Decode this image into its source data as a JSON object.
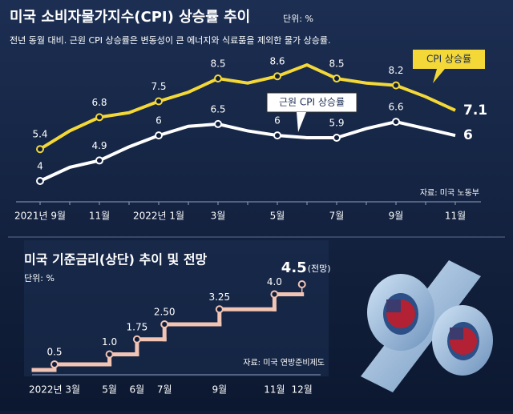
{
  "chart_data": [
    {
      "type": "line",
      "title": "미국 소비자물가지수(CPI) 상승률 추이",
      "unit": "단위: %",
      "subtitle": "전년 동월 대비. 근원 CPI 상승률은 변동성이 큰 에너지와 식료품을 제외한 물가 상승률.",
      "source": "자료: 미국 노동부",
      "categories": [
        "2021년 9월",
        null,
        "11월",
        null,
        "2022년 1월",
        null,
        "3월",
        null,
        "5월",
        null,
        "7월",
        null,
        "9월",
        null,
        "11월"
      ],
      "series": [
        {
          "name": "CPI 상승률",
          "color": "#f3d838",
          "values": [
            5.4,
            6.2,
            6.8,
            7.0,
            7.5,
            7.9,
            8.5,
            8.3,
            8.6,
            9.1,
            8.5,
            8.3,
            8.2,
            7.7,
            7.1
          ]
        },
        {
          "name": "근원 CPI 상승률",
          "color": "#ffffff",
          "values": [
            4.0,
            4.6,
            4.9,
            5.5,
            6.0,
            6.4,
            6.5,
            6.2,
            6.0,
            5.9,
            5.9,
            6.3,
            6.6,
            6.3,
            6.0
          ]
        }
      ]
    },
    {
      "type": "step",
      "title": "미국 기준금리(상단) 추이 및 전망",
      "unit": "단위: %",
      "source": "자료: 미국 연방준비제도",
      "categories": [
        "2022년 3월",
        "5월",
        "6월",
        "7월",
        "9월",
        "11월",
        "12월"
      ],
      "values": [
        0.5,
        1,
        1.75,
        2.5,
        3.25,
        4,
        4.5
      ],
      "value_labels": [
        "0.5",
        "1.0",
        "1.75",
        "2.50",
        "3.25",
        "4.0",
        "4.5"
      ],
      "annotation": "(전망)",
      "color": "#f2c4b4"
    }
  ]
}
